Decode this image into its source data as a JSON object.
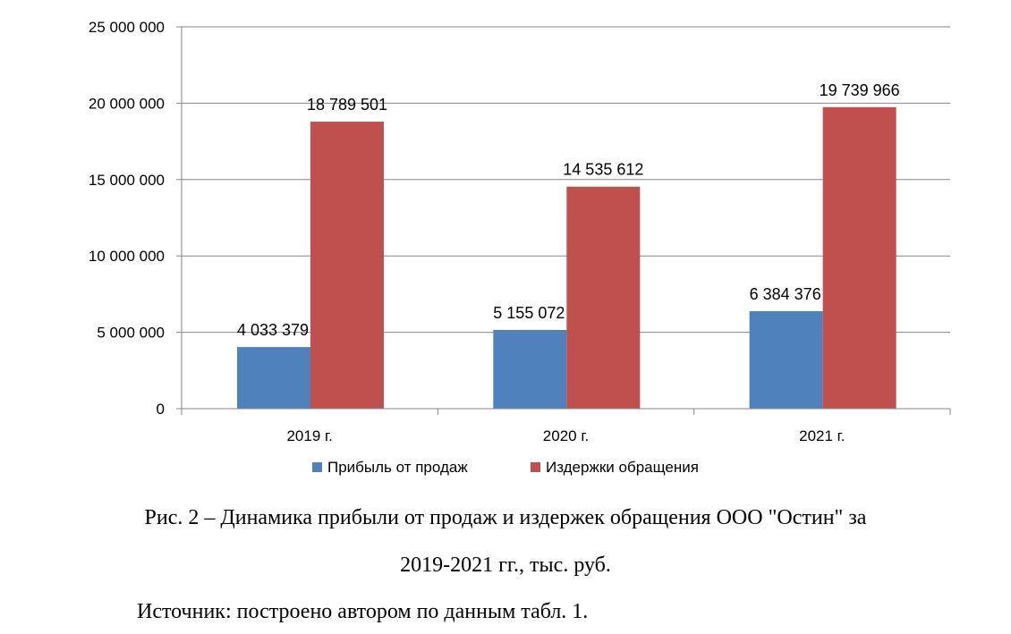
{
  "chart_data": {
    "type": "bar",
    "categories": [
      "2019 г.",
      "2020 г.",
      "2021 г."
    ],
    "series": [
      {
        "name": "Прибыль от продаж",
        "values": [
          4033379,
          5155072,
          6384376
        ],
        "labels": [
          "4 033 379",
          "5 155 072",
          "6 384 376"
        ],
        "color": "#4f81bd"
      },
      {
        "name": "Издержки обращения",
        "values": [
          18789501,
          14535612,
          19739966
        ],
        "labels": [
          "18 789 501",
          "14 535 612",
          "19 739 966"
        ],
        "color": "#c0504d"
      }
    ],
    "ylim": [
      0,
      25000000
    ],
    "yticks": [
      0,
      5000000,
      10000000,
      15000000,
      20000000,
      25000000
    ],
    "ytick_labels": [
      "0",
      "5 000 000",
      "10 000 000",
      "15 000 000",
      "20 000 000",
      "25 000 000"
    ],
    "grid": true,
    "legend_position": "bottom",
    "title": "",
    "xlabel": "",
    "ylabel": ""
  },
  "caption": {
    "line1": "Рис. 2 – Динамика прибыли от продаж и издержек обращения ООО \"Остин\" за",
    "line2": "2019-2021 гг., тыс. руб.",
    "source": "Источник: построено автором по данным табл. 1."
  }
}
